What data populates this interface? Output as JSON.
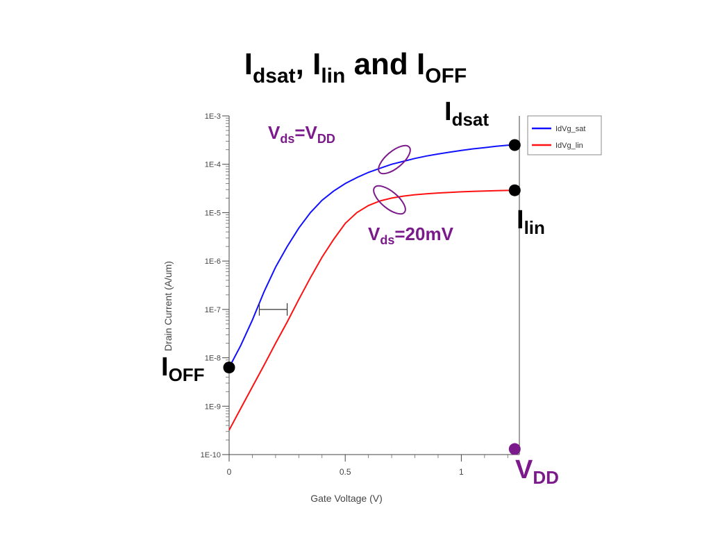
{
  "slide": {
    "title_parts": {
      "I1": "I",
      "dsat": "dsat",
      "sep1": ", ",
      "I2": "I",
      "lin": "lin",
      "sep2": " and ",
      "I3": "I",
      "off": "OFF"
    }
  },
  "annotations": {
    "idsat": {
      "main": "I",
      "sub": "dsat"
    },
    "ilin": {
      "main": "I",
      "sub": "lin"
    },
    "ioff": {
      "main": "I",
      "sub": "OFF"
    },
    "vdd": {
      "main": "V",
      "sub": "DD"
    },
    "vds_sat": {
      "v1": "V",
      "sub1": "ds",
      "eq": "=V",
      "sub2": "DD"
    },
    "vds_lin": {
      "v1": "V",
      "sub1": "ds",
      "eq": "=20mV"
    }
  },
  "chart_data": {
    "type": "line",
    "xlabel": "Gate Voltage (V)",
    "ylabel": "Drain Current (A/um)",
    "xlim": [
      0,
      1.25
    ],
    "ylim": [
      1e-10,
      0.001
    ],
    "yscale": "log",
    "x_ticks": [
      "0",
      "0.5",
      "1"
    ],
    "y_ticks": [
      "1E-3",
      "1E-4",
      "1E-5",
      "1E-6",
      "1E-7",
      "1E-8",
      "1E-9",
      "1E-10"
    ],
    "legend": "top-right",
    "series": [
      {
        "name": "IdVg_sat",
        "color": "#1010ff",
        "x": [
          0,
          0.05,
          0.1,
          0.15,
          0.2,
          0.25,
          0.3,
          0.35,
          0.4,
          0.45,
          0.5,
          0.55,
          0.6,
          0.65,
          0.7,
          0.75,
          0.8,
          0.85,
          0.9,
          0.95,
          1.0,
          1.05,
          1.1,
          1.15,
          1.2,
          1.22
        ],
        "y": [
          6.3e-09,
          1.8e-08,
          6e-08,
          2.3e-07,
          7.5e-07,
          2e-06,
          4.8e-06,
          1e-05,
          1.8e-05,
          2.8e-05,
          4e-05,
          5.3e-05,
          6.8e-05,
          8.3e-05,
          0.0001,
          0.000115,
          0.000132,
          0.000148,
          0.000163,
          0.000178,
          0.000193,
          0.000208,
          0.00022,
          0.000235,
          0.000248,
          0.00025
        ]
      },
      {
        "name": "IdVg_lin",
        "color": "#ff1010",
        "x": [
          0,
          0.05,
          0.1,
          0.15,
          0.2,
          0.25,
          0.3,
          0.35,
          0.4,
          0.45,
          0.5,
          0.55,
          0.6,
          0.65,
          0.7,
          0.75,
          0.8,
          0.85,
          0.9,
          0.95,
          1.0,
          1.05,
          1.1,
          1.15,
          1.2,
          1.22
        ],
        "y": [
          3.2e-10,
          9e-10,
          2.5e-09,
          7e-09,
          2e-08,
          5.5e-08,
          1.6e-07,
          4.5e-07,
          1.2e-06,
          2.8e-06,
          6e-06,
          1e-05,
          1.4e-05,
          1.75e-05,
          2e-05,
          2.2e-05,
          2.35e-05,
          2.45e-05,
          2.55e-05,
          2.62e-05,
          2.7e-05,
          2.75e-05,
          2.8e-05,
          2.84e-05,
          2.88e-05,
          2.9e-05
        ]
      }
    ],
    "markers": [
      {
        "name": "idsat-point",
        "x": 1.23,
        "y": 0.00025,
        "color": "#000000"
      },
      {
        "name": "ilin-point",
        "x": 1.23,
        "y": 2.9e-05,
        "color": "#000000"
      },
      {
        "name": "ioff-point",
        "x": 0.0,
        "y": 6.3e-09,
        "color": "#000000"
      },
      {
        "name": "vdd-point",
        "x": 1.23,
        "y": 1.3e-10,
        "color": "#7b1a8a"
      }
    ],
    "vdd_x": 1.23,
    "subthreshold_bracket": {
      "x1": 0.13,
      "x2": 0.25,
      "y": 1e-07
    }
  }
}
